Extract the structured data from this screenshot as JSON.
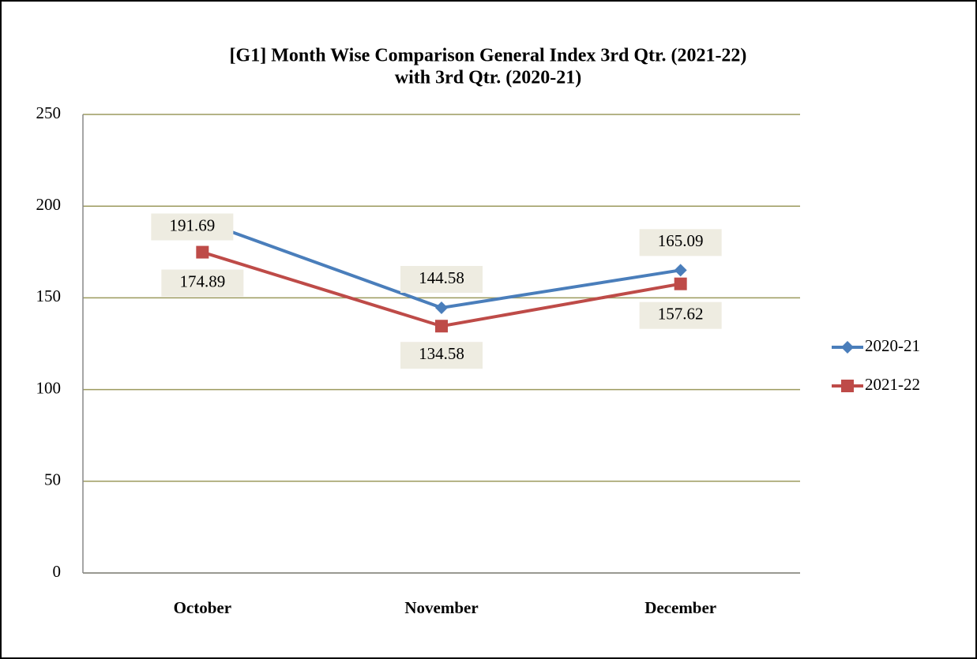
{
  "chart_data": {
    "type": "line",
    "title": [
      "[G1] Month Wise Comparison General Index  3rd  Qtr. (2021-22)",
      "with 3rd  Qtr. (2020-21)"
    ],
    "categories": [
      "October",
      "November",
      "December"
    ],
    "series": [
      {
        "name": "2020-21",
        "color": "#4a7ebb",
        "marker": "diamond",
        "values": [
          191.69,
          144.58,
          165.09
        ]
      },
      {
        "name": "2021-22",
        "color": "#be4b48",
        "marker": "square",
        "values": [
          174.89,
          134.58,
          157.62
        ]
      }
    ],
    "ylim": [
      0,
      250
    ],
    "yticks": [
      0,
      50,
      100,
      150,
      200,
      250
    ],
    "grid": true,
    "legend": "right"
  }
}
